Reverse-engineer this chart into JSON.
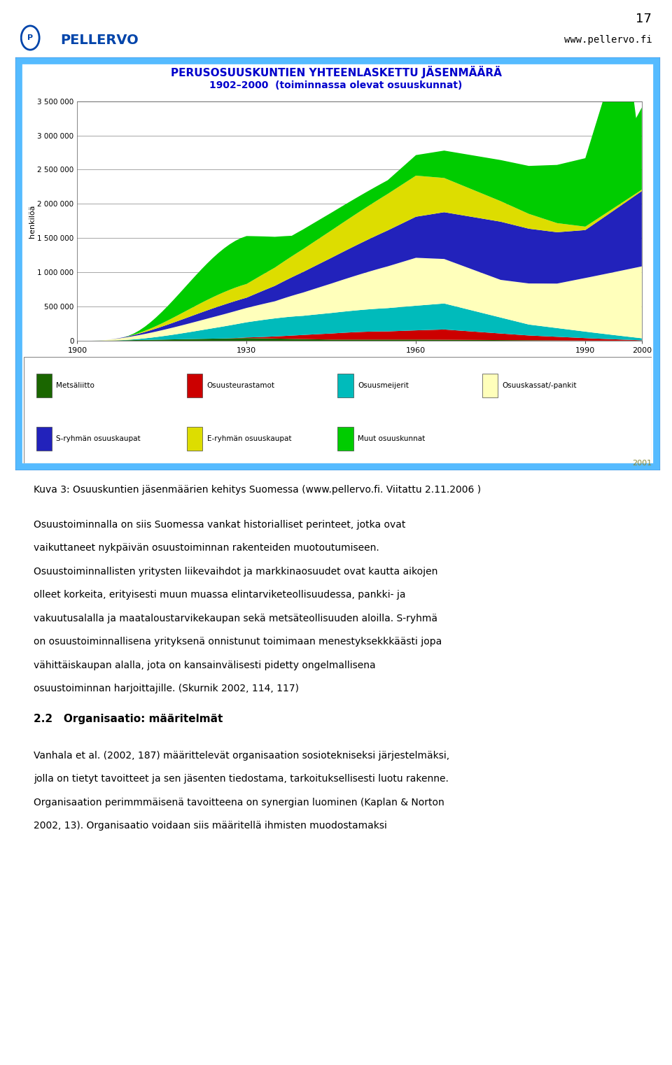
{
  "page_number": "17",
  "pellervo_url": "www.pellervo.fi",
  "chart_title_line1": "PERUSOSUUSKUNTIEN YHTEENLASKETTU JÄSENMÄÄRÄ",
  "chart_title_line2": "1902–2000  (toiminnassa olevat osuuskunnat)",
  "ylabel": "henkilöä",
  "year_label_2001": "2001",
  "colors": {
    "metsaliitto": "#1a6600",
    "osuusteurastamot": "#CC0000",
    "osuusmeijerit": "#00BBBB",
    "osuuskassat": "#FFFFBB",
    "s_ryhma": "#2222BB",
    "e_ryhma": "#DDDD00",
    "muut": "#00CC00"
  },
  "legend_labels": [
    "Metsäliitto",
    "Osuusteurastamot",
    "Osuusmeijerit",
    "Osuuskassat/-pankit",
    "S-ryhmän osuuskaupat",
    "E-ryhmän osuuskaupat",
    "Muut osuuskunnat"
  ],
  "yticks": [
    0,
    500000,
    1000000,
    1500000,
    2000000,
    2500000,
    3000000,
    3500000
  ],
  "xticks": [
    1900,
    1930,
    1960,
    1990,
    2000
  ],
  "title_color": "#0000CC",
  "border_outer": "#0044AA",
  "border_inner": "#44AAFF",
  "page_bg": "#FFFFFF"
}
